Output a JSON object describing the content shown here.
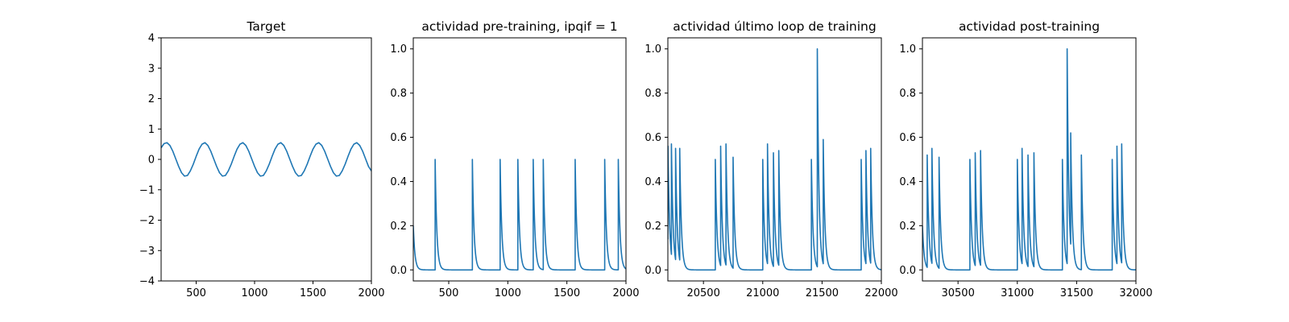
{
  "colors": {
    "series": "#1f77b4",
    "axes": "#000000",
    "background": "#ffffff"
  },
  "chart_data": [
    {
      "type": "line",
      "title": "Target",
      "xlabel": "",
      "ylabel": "",
      "xlim": [
        200,
        2000
      ],
      "ylim": [
        -4,
        4
      ],
      "xticks": [
        500,
        1000,
        1500,
        2000
      ],
      "yticks": [
        -4,
        -3,
        -2,
        -1,
        0,
        1,
        2,
        3,
        4
      ],
      "grid": false,
      "series": [
        {
          "x": [
            200,
            225,
            250,
            275,
            300,
            325,
            350,
            375,
            400,
            425,
            450,
            475,
            500,
            525,
            550,
            575,
            600,
            625,
            650,
            675,
            700,
            725,
            750,
            775,
            800,
            825,
            850,
            875,
            900,
            925,
            950,
            975,
            1000,
            1025,
            1050,
            1075,
            1100,
            1125,
            1150,
            1175,
            1200,
            1225,
            1250,
            1275,
            1300,
            1325,
            1350,
            1375,
            1400,
            1425,
            1450,
            1475,
            1500,
            1525,
            1550,
            1575,
            1600,
            1625,
            1650,
            1675,
            1700,
            1725,
            1750,
            1775,
            1800,
            1825,
            1850,
            1875,
            1900,
            1925,
            1950,
            1975,
            2000
          ],
          "y": [
            0.38,
            0.52,
            0.55,
            0.46,
            0.27,
            0.02,
            -0.23,
            -0.44,
            -0.55,
            -0.53,
            -0.38,
            -0.16,
            0.1,
            0.34,
            0.5,
            0.55,
            0.46,
            0.27,
            0.02,
            -0.23,
            -0.44,
            -0.55,
            -0.53,
            -0.38,
            -0.16,
            0.1,
            0.34,
            0.5,
            0.55,
            0.46,
            0.27,
            0.02,
            -0.23,
            -0.44,
            -0.55,
            -0.53,
            -0.38,
            -0.16,
            0.1,
            0.34,
            0.5,
            0.55,
            0.46,
            0.27,
            0.02,
            -0.23,
            -0.44,
            -0.55,
            -0.53,
            -0.38,
            -0.16,
            0.1,
            0.34,
            0.5,
            0.55,
            0.46,
            0.27,
            0.02,
            -0.23,
            -0.44,
            -0.55,
            -0.53,
            -0.38,
            -0.16,
            0.1,
            0.34,
            0.5,
            0.55,
            0.46,
            0.27,
            0.02,
            -0.23,
            -0.38
          ]
        }
      ]
    },
    {
      "type": "line",
      "title": "actividad pre-training, ipqif = 1",
      "xlabel": "",
      "ylabel": "",
      "xlim": [
        200,
        2000
      ],
      "ylim": [
        -0.05,
        1.05
      ],
      "xticks": [
        500,
        1000,
        1500,
        2000
      ],
      "yticks": [
        0.0,
        0.2,
        0.4,
        0.6,
        0.8,
        1.0
      ],
      "ytick_labels": [
        "0.0",
        "0.2",
        "0.4",
        "0.6",
        "0.8",
        "1.0"
      ],
      "grid": false,
      "decay_tau": 14,
      "series": [
        {
          "initial_value": 0.2,
          "spikes": [
            [
              385,
              0.5
            ],
            [
              700,
              0.5
            ],
            [
              935,
              0.5
            ],
            [
              1085,
              0.5
            ],
            [
              1215,
              0.5
            ],
            [
              1300,
              0.5
            ],
            [
              1570,
              0.5
            ],
            [
              1820,
              0.5
            ],
            [
              1935,
              0.5
            ]
          ]
        }
      ]
    },
    {
      "type": "line",
      "title": "actividad último loop de training",
      "xlabel": "",
      "ylabel": "",
      "xlim": [
        20200,
        22000
      ],
      "ylim": [
        -0.05,
        1.05
      ],
      "xticks": [
        20500,
        21000,
        21500,
        22000
      ],
      "yticks": [
        0.0,
        0.2,
        0.4,
        0.6,
        0.8,
        1.0
      ],
      "ytick_labels": [
        "0.0",
        "0.2",
        "0.4",
        "0.6",
        "0.8",
        "1.0"
      ],
      "grid": false,
      "decay_tau": 14,
      "series": [
        {
          "initial_value": 0.15,
          "spikes": [
            [
              20200,
              0.56
            ],
            [
              20230,
              0.57
            ],
            [
              20265,
              0.55
            ],
            [
              20300,
              0.55
            ],
            [
              20600,
              0.5
            ],
            [
              20645,
              0.56
            ],
            [
              20690,
              0.57
            ],
            [
              20750,
              0.51
            ],
            [
              21000,
              0.5
            ],
            [
              21040,
              0.57
            ],
            [
              21090,
              0.53
            ],
            [
              21135,
              0.54
            ],
            [
              21410,
              0.5
            ],
            [
              21460,
              1.0
            ],
            [
              21510,
              0.59
            ],
            [
              21830,
              0.5
            ],
            [
              21870,
              0.54
            ],
            [
              21910,
              0.55
            ]
          ]
        }
      ]
    },
    {
      "type": "line",
      "title": "actividad post-training",
      "xlabel": "",
      "ylabel": "",
      "xlim": [
        30200,
        32000
      ],
      "ylim": [
        -0.05,
        1.05
      ],
      "xticks": [
        30500,
        31000,
        31500,
        32000
      ],
      "yticks": [
        0.0,
        0.2,
        0.4,
        0.6,
        0.8,
        1.0
      ],
      "ytick_labels": [
        "0.0",
        "0.2",
        "0.4",
        "0.6",
        "0.8",
        "1.0"
      ],
      "grid": false,
      "decay_tau": 14,
      "series": [
        {
          "initial_value": 0.2,
          "spikes": [
            [
              30240,
              0.52
            ],
            [
              30280,
              0.55
            ],
            [
              30340,
              0.51
            ],
            [
              30600,
              0.5
            ],
            [
              30645,
              0.53
            ],
            [
              30690,
              0.54
            ],
            [
              31000,
              0.5
            ],
            [
              31040,
              0.55
            ],
            [
              31090,
              0.52
            ],
            [
              31140,
              0.53
            ],
            [
              31380,
              0.5
            ],
            [
              31420,
              1.0
            ],
            [
              31450,
              0.62
            ],
            [
              31540,
              0.52
            ],
            [
              31800,
              0.5
            ],
            [
              31840,
              0.56
            ],
            [
              31880,
              0.57
            ]
          ]
        }
      ]
    }
  ]
}
